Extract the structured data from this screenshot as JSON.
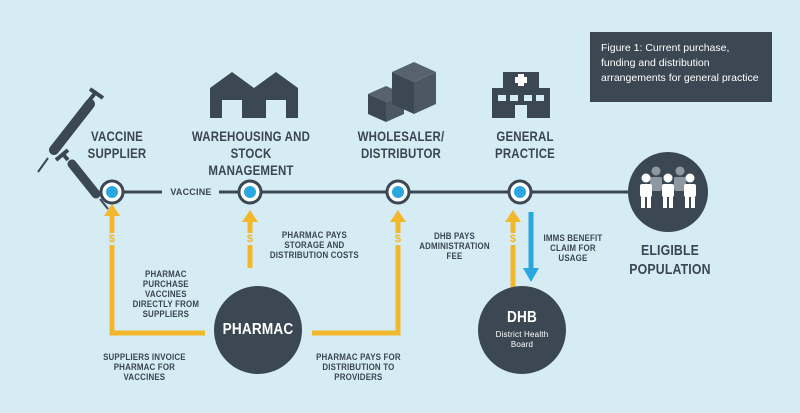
{
  "figure_caption": "Figure 1: Current purchase, funding and distribution arrangements for general practice",
  "stages": {
    "vaccine_supplier": [
      "VACCINE",
      "SUPPLIER"
    ],
    "warehousing": [
      "WAREHOUSING AND",
      "STOCK MANAGEMENT"
    ],
    "wholesaler": [
      "WHOLESALER/",
      "DISTRIBUTOR"
    ],
    "general_practice": [
      "GENERAL",
      "PRACTICE"
    ],
    "eligible_population": [
      "ELIGIBLE",
      "POPULATION"
    ]
  },
  "flow_label": "VACCINE",
  "nodes": {
    "pharmac": "PHARMAC",
    "dhb_title": "DHB",
    "dhb_subtitle": [
      "District Health",
      "Board"
    ]
  },
  "annotations": {
    "pharmac_purchase": [
      "PHARMAC",
      "PURCHASE",
      "VACCINES",
      "DIRECTLY FROM",
      "SUPPLIERS"
    ],
    "storage_costs": [
      "PHARMAC PAYS",
      "STORAGE AND",
      "DISTRIBUTION COSTS"
    ],
    "suppliers_invoice": [
      "SUPPLIERS INVOICE",
      "PHARMAC FOR",
      "VACCINES"
    ],
    "distribution_payment": [
      "PHARMAC PAYS FOR",
      "DISTRIBUTION TO",
      "PROVIDERS"
    ],
    "dhb_admin_fee": [
      "DHB PAYS",
      "ADMINISTRATION",
      "FEE"
    ],
    "imms_claim": [
      "IMMS BENEFIT",
      "CLAIM FOR USAGE"
    ]
  },
  "money_symbol": "$",
  "colors": {
    "background": "#d6ecf5",
    "dark": "#3b4853",
    "accent_yellow": "#f2b72a",
    "accent_blue": "#2aa7e0"
  }
}
